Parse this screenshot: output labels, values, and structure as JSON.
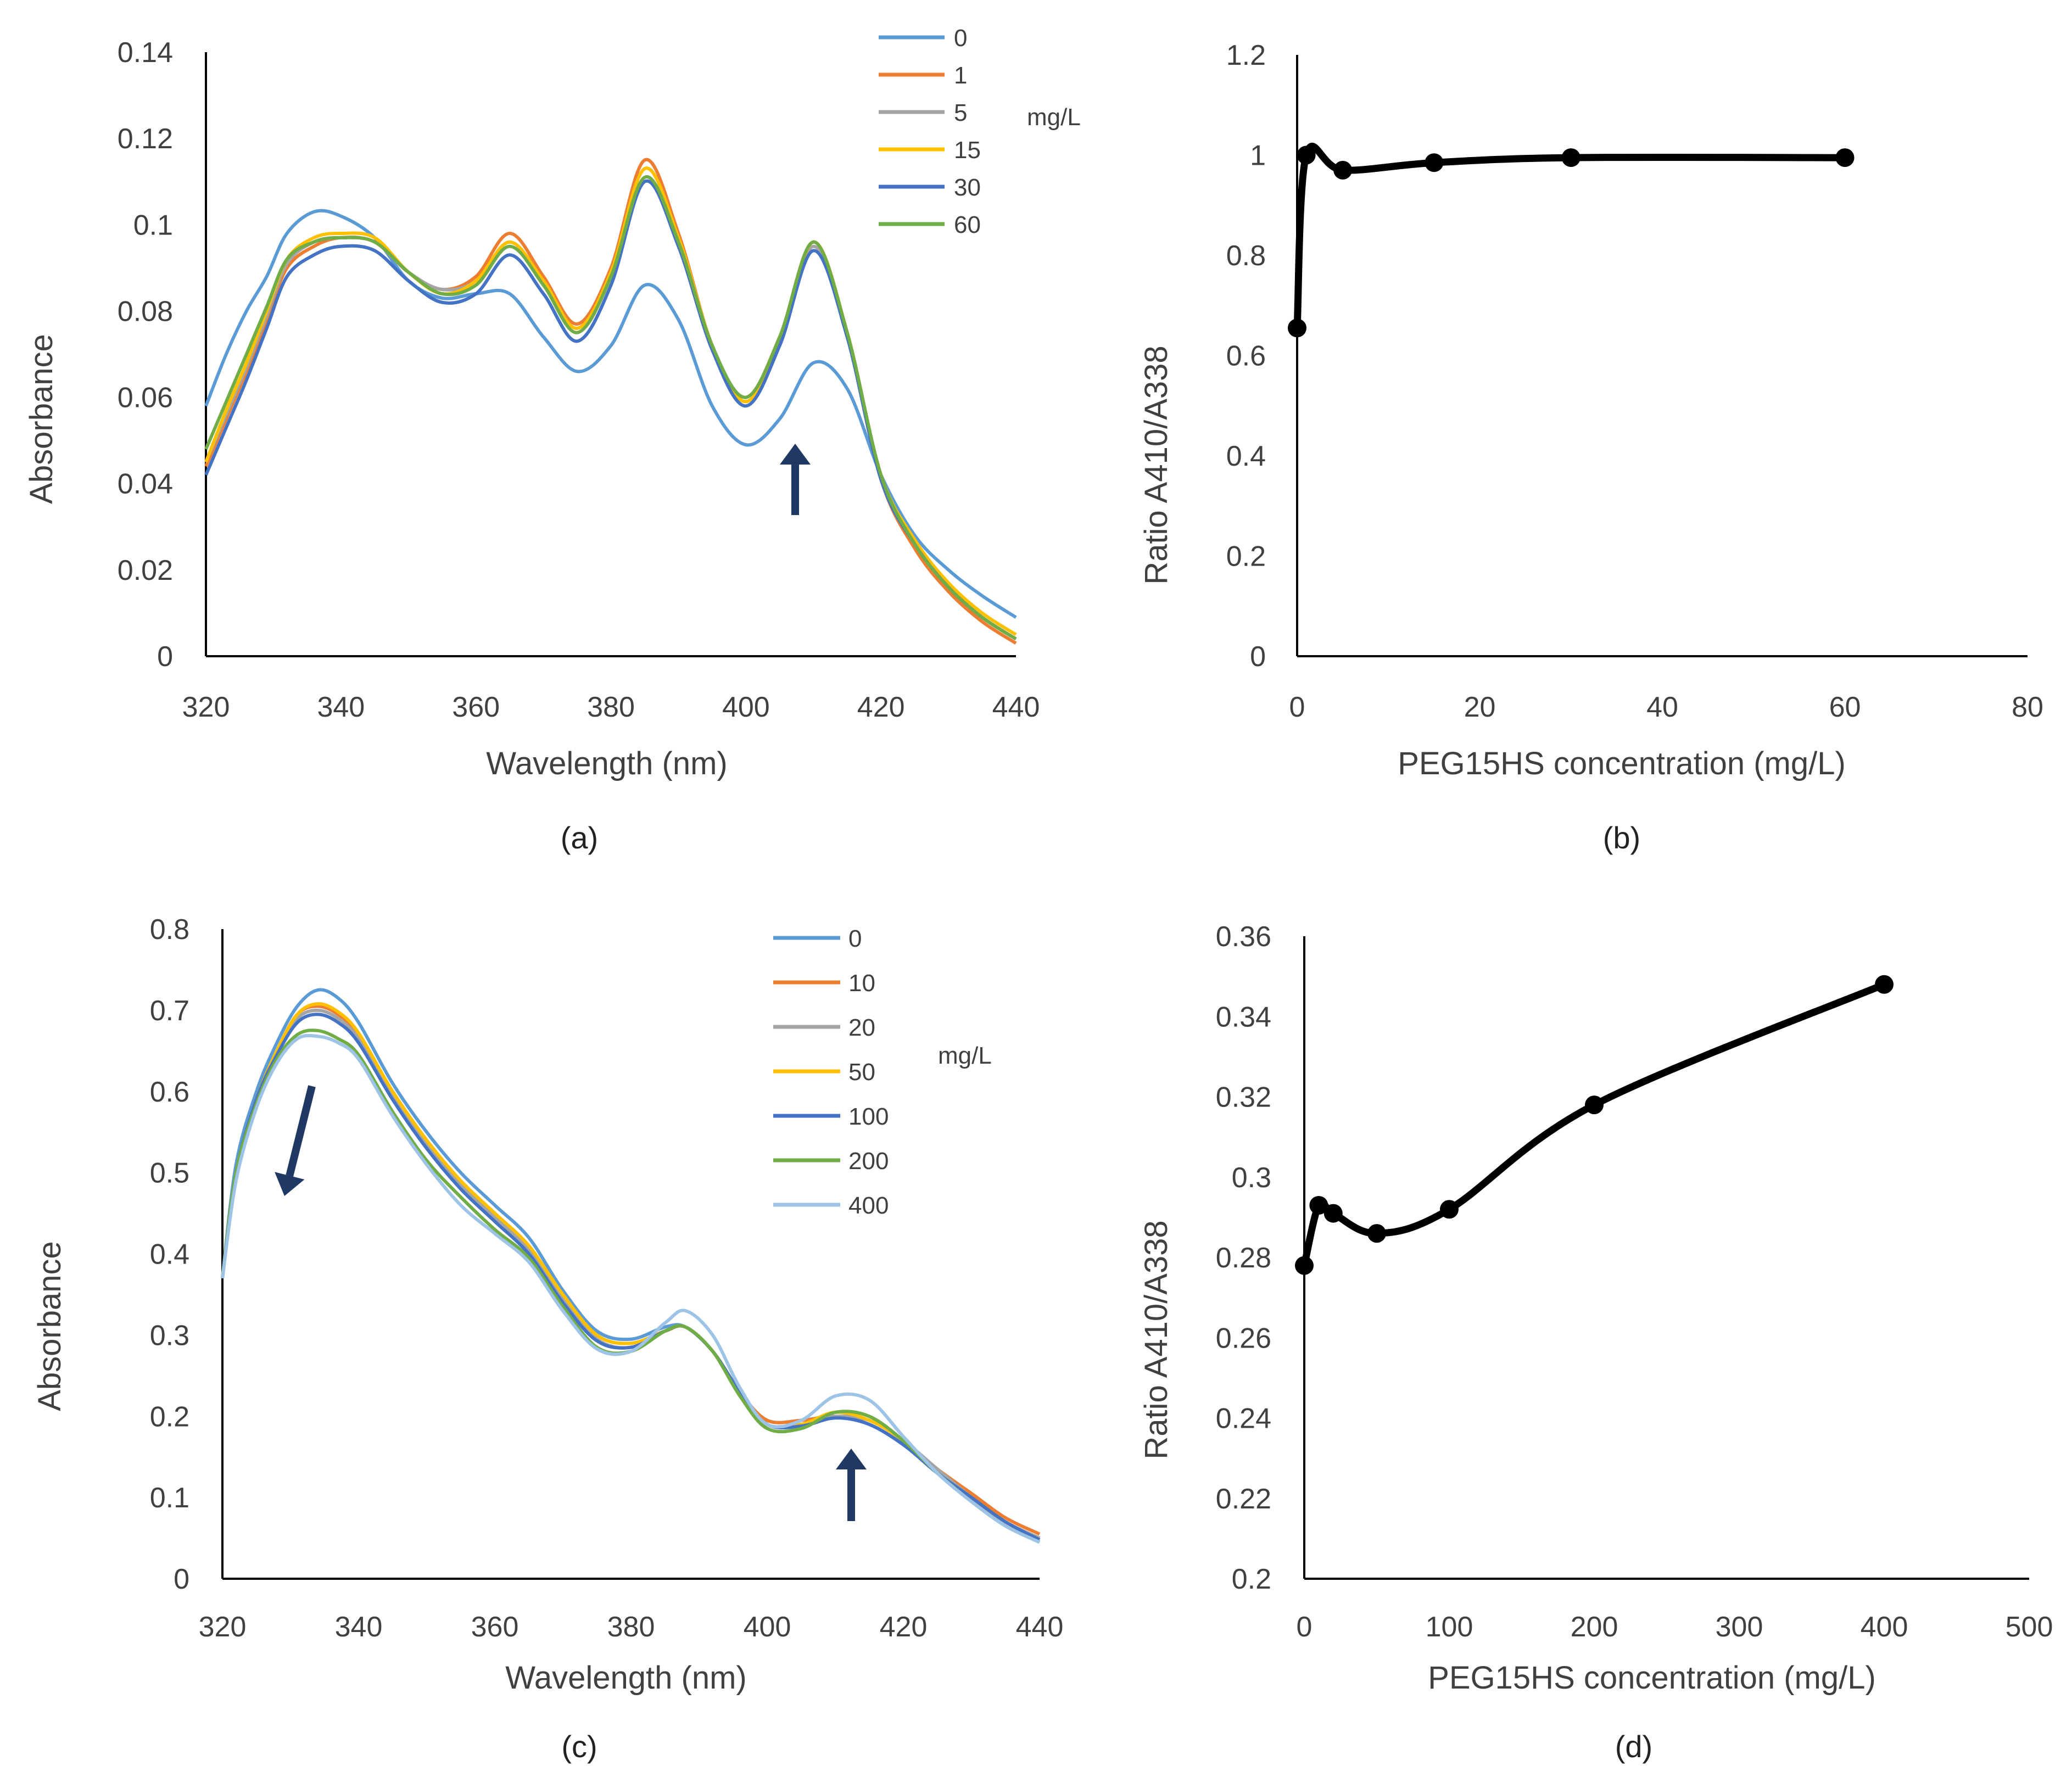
{
  "chart_data": [
    {
      "panel": "a",
      "caption": "(a)",
      "type": "line",
      "xlabel": "Wavelength (nm)",
      "ylabel": "Absorbance",
      "xlim": [
        320,
        440
      ],
      "ylim": [
        0,
        0.14
      ],
      "xticks": [
        "320",
        "340",
        "360",
        "380",
        "400",
        "420",
        "440"
      ],
      "yticks": [
        "0",
        "0.02",
        "0.04",
        "0.06",
        "0.08",
        "0.1",
        "0.12",
        "0.14"
      ],
      "legend_unit": "mg/L",
      "legend_placement": "top-right",
      "grid": false,
      "annotation": "up-arrow near 408 nm",
      "x": [
        320,
        323,
        326,
        329,
        332,
        336,
        340,
        345,
        350,
        355,
        360,
        365,
        370,
        375,
        380,
        385,
        390,
        395,
        400,
        405,
        410,
        415,
        420,
        425,
        430,
        435,
        440
      ],
      "series": [
        {
          "name": "0",
          "color": "#5b9bd5",
          "values": [
            0.058,
            0.07,
            0.08,
            0.088,
            0.098,
            0.103,
            0.102,
            0.097,
            0.087,
            0.083,
            0.084,
            0.084,
            0.074,
            0.066,
            0.072,
            0.086,
            0.078,
            0.058,
            0.049,
            0.055,
            0.068,
            0.062,
            0.042,
            0.028,
            0.02,
            0.014,
            0.009
          ]
        },
        {
          "name": "1",
          "color": "#ed7d31",
          "values": [
            0.044,
            0.055,
            0.066,
            0.078,
            0.09,
            0.095,
            0.097,
            0.096,
            0.089,
            0.085,
            0.088,
            0.098,
            0.088,
            0.077,
            0.09,
            0.115,
            0.098,
            0.072,
            0.06,
            0.074,
            0.096,
            0.075,
            0.041,
            0.025,
            0.015,
            0.008,
            0.003
          ]
        },
        {
          "name": "5",
          "color": "#a5a5a5",
          "values": [
            0.045,
            0.056,
            0.067,
            0.079,
            0.091,
            0.096,
            0.097,
            0.096,
            0.089,
            0.085,
            0.087,
            0.096,
            0.087,
            0.076,
            0.089,
            0.113,
            0.097,
            0.072,
            0.059,
            0.073,
            0.095,
            0.074,
            0.041,
            0.026,
            0.016,
            0.009,
            0.004
          ]
        },
        {
          "name": "15",
          "color": "#ffc000",
          "values": [
            0.045,
            0.057,
            0.068,
            0.08,
            0.092,
            0.097,
            0.098,
            0.097,
            0.089,
            0.084,
            0.087,
            0.096,
            0.087,
            0.076,
            0.089,
            0.113,
            0.097,
            0.072,
            0.059,
            0.073,
            0.096,
            0.075,
            0.042,
            0.027,
            0.017,
            0.01,
            0.005
          ]
        },
        {
          "name": "30",
          "color": "#4472c4",
          "values": [
            0.042,
            0.053,
            0.064,
            0.076,
            0.088,
            0.093,
            0.095,
            0.094,
            0.087,
            0.082,
            0.084,
            0.093,
            0.084,
            0.073,
            0.086,
            0.11,
            0.095,
            0.071,
            0.058,
            0.072,
            0.094,
            0.074,
            0.041,
            0.026,
            0.016,
            0.009,
            0.004
          ]
        },
        {
          "name": "60",
          "color": "#70ad47",
          "values": [
            0.048,
            0.059,
            0.07,
            0.081,
            0.092,
            0.096,
            0.097,
            0.096,
            0.089,
            0.084,
            0.086,
            0.095,
            0.086,
            0.075,
            0.088,
            0.111,
            0.096,
            0.072,
            0.06,
            0.074,
            0.096,
            0.075,
            0.042,
            0.026,
            0.016,
            0.009,
            0.004
          ]
        }
      ]
    },
    {
      "panel": "b",
      "caption": "(b)",
      "type": "line",
      "markers": true,
      "xlabel": "PEG15HS concentration (mg/L)",
      "ylabel": "Ratio A410/A338",
      "xlim": [
        0,
        80
      ],
      "ylim": [
        0,
        1.2
      ],
      "xticks": [
        "0",
        "20",
        "40",
        "60",
        "80"
      ],
      "yticks": [
        "0",
        "0.2",
        "0.4",
        "0.6",
        "0.8",
        "1",
        "1.2"
      ],
      "grid": false,
      "x": [
        0,
        1,
        5,
        15,
        30,
        60
      ],
      "values": [
        0.655,
        1.0,
        0.97,
        0.985,
        0.995,
        0.995
      ]
    },
    {
      "panel": "c",
      "caption": "(c)",
      "type": "line",
      "xlabel": "Wavelength (nm)",
      "ylabel": "Absorbance",
      "xlim": [
        320,
        440
      ],
      "ylim": [
        0,
        0.8
      ],
      "xticks": [
        "320",
        "340",
        "360",
        "380",
        "400",
        "420",
        "440"
      ],
      "yticks": [
        "0",
        "0.1",
        "0.2",
        "0.3",
        "0.4",
        "0.5",
        "0.6",
        "0.7",
        "0.8"
      ],
      "legend_unit": "mg/L",
      "legend_placement": "top-right",
      "grid": false,
      "annotations": [
        "down-left arrow near 330 nm",
        "up-arrow near 413 nm"
      ],
      "x": [
        320,
        322,
        325,
        328,
        331,
        334,
        337,
        340,
        345,
        350,
        355,
        360,
        365,
        370,
        375,
        380,
        385,
        388,
        392,
        396,
        400,
        405,
        410,
        415,
        420,
        425,
        430,
        435,
        440
      ],
      "series": [
        {
          "name": "0",
          "color": "#5b9bd5",
          "values": [
            0.37,
            0.51,
            0.6,
            0.66,
            0.705,
            0.725,
            0.715,
            0.685,
            0.61,
            0.55,
            0.5,
            0.46,
            0.42,
            0.355,
            0.305,
            0.295,
            0.31,
            0.31,
            0.28,
            0.23,
            0.195,
            0.195,
            0.2,
            0.19,
            0.165,
            0.13,
            0.1,
            0.07,
            0.05
          ]
        },
        {
          "name": "10",
          "color": "#ed7d31",
          "values": [
            0.37,
            0.5,
            0.59,
            0.65,
            0.695,
            0.705,
            0.695,
            0.67,
            0.6,
            0.54,
            0.49,
            0.45,
            0.41,
            0.35,
            0.3,
            0.29,
            0.305,
            0.31,
            0.28,
            0.23,
            0.195,
            0.195,
            0.2,
            0.195,
            0.17,
            0.135,
            0.105,
            0.075,
            0.055
          ]
        },
        {
          "name": "20",
          "color": "#a5a5a5",
          "values": [
            0.37,
            0.5,
            0.59,
            0.648,
            0.69,
            0.7,
            0.69,
            0.665,
            0.595,
            0.535,
            0.485,
            0.445,
            0.405,
            0.345,
            0.295,
            0.285,
            0.305,
            0.31,
            0.28,
            0.23,
            0.19,
            0.19,
            0.2,
            0.195,
            0.17,
            0.135,
            0.1,
            0.07,
            0.05
          ]
        },
        {
          "name": "50",
          "color": "#ffc000",
          "values": [
            0.37,
            0.5,
            0.59,
            0.65,
            0.695,
            0.708,
            0.698,
            0.672,
            0.6,
            0.54,
            0.49,
            0.45,
            0.41,
            0.35,
            0.3,
            0.29,
            0.305,
            0.31,
            0.28,
            0.23,
            0.19,
            0.19,
            0.205,
            0.195,
            0.17,
            0.13,
            0.1,
            0.07,
            0.048
          ]
        },
        {
          "name": "100",
          "color": "#4472c4",
          "values": [
            0.37,
            0.5,
            0.59,
            0.645,
            0.685,
            0.695,
            0.685,
            0.66,
            0.59,
            0.53,
            0.48,
            0.44,
            0.4,
            0.34,
            0.293,
            0.285,
            0.305,
            0.31,
            0.28,
            0.23,
            0.19,
            0.188,
            0.198,
            0.19,
            0.165,
            0.13,
            0.1,
            0.07,
            0.048
          ]
        },
        {
          "name": "200",
          "color": "#70ad47",
          "values": [
            0.37,
            0.5,
            0.585,
            0.64,
            0.67,
            0.675,
            0.665,
            0.645,
            0.575,
            0.515,
            0.47,
            0.43,
            0.395,
            0.335,
            0.285,
            0.28,
            0.305,
            0.31,
            0.28,
            0.225,
            0.185,
            0.185,
            0.205,
            0.2,
            0.17,
            0.13,
            0.095,
            0.065,
            0.045
          ]
        },
        {
          "name": "400",
          "color": "#9dc3e6",
          "values": [
            0.37,
            0.49,
            0.58,
            0.635,
            0.665,
            0.668,
            0.66,
            0.64,
            0.57,
            0.51,
            0.46,
            0.425,
            0.39,
            0.33,
            0.283,
            0.28,
            0.315,
            0.33,
            0.3,
            0.235,
            0.19,
            0.195,
            0.225,
            0.22,
            0.175,
            0.13,
            0.095,
            0.065,
            0.045
          ]
        }
      ]
    },
    {
      "panel": "d",
      "caption": "(d)",
      "type": "line",
      "markers": true,
      "xlabel": "PEG15HS concentration (mg/L)",
      "ylabel": "Ratio A410/A338",
      "xlim": [
        0,
        500
      ],
      "ylim": [
        0.2,
        0.36
      ],
      "xticks": [
        "0",
        "100",
        "200",
        "300",
        "400",
        "500"
      ],
      "yticks": [
        "0.2",
        "0.22",
        "0.24",
        "0.26",
        "0.28",
        "0.3",
        "0.32",
        "0.34",
        "0.36"
      ],
      "grid": false,
      "x": [
        0,
        10,
        20,
        50,
        100,
        200,
        400
      ],
      "values": [
        0.278,
        0.293,
        0.291,
        0.286,
        0.292,
        0.318,
        0.348
      ]
    }
  ]
}
